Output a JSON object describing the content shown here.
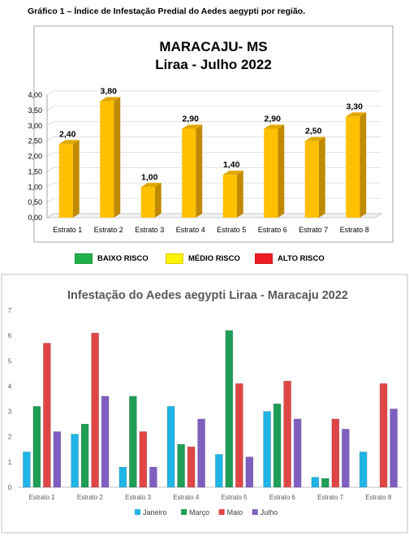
{
  "caption": "Gráfico 1 – Índice de Infestação Predial do Aedes aegypti por região.",
  "risk_legend": [
    {
      "label": "BAIXO RISCO",
      "color": "#21B14A"
    },
    {
      "label": "MÉDIO RISCO",
      "color": "#FFF200"
    },
    {
      "label": "ALTO RISCO",
      "color": "#ED1C24"
    }
  ],
  "chart_data": [
    {
      "type": "bar",
      "title": "MARACAJU- MS",
      "subtitle": "Liraa - Julho 2022",
      "categories": [
        "Estrato 1",
        "Estrato 2",
        "Estrato 3",
        "Estrato 4",
        "Estrato 5",
        "Estrato 6",
        "Estrato 7",
        "Estrato 8"
      ],
      "values": [
        2.4,
        3.8,
        1.0,
        2.9,
        1.4,
        2.9,
        2.5,
        3.3
      ],
      "value_labels": [
        "2,40",
        "3,80",
        "1,00",
        "2,90",
        "1,40",
        "2,90",
        "2,50",
        "3,30"
      ],
      "ylim": [
        0,
        4
      ],
      "yticks": [
        "0,00",
        "0,50",
        "1,00",
        "1,50",
        "2,00",
        "2,50",
        "3,00",
        "3,50",
        "4,00"
      ],
      "bar_color": "#FFC000",
      "style": "3d",
      "legend": "none"
    },
    {
      "type": "bar",
      "title": "Infestação do Aedes aegypti Liraa - Maracaju 2022",
      "categories": [
        "Estrato 1",
        "Estrato 2",
        "Estrato 3",
        "Estrato 4",
        "Estrato 5",
        "Estrato 6",
        "Estrato 7",
        "Estrato 8"
      ],
      "series": [
        {
          "name": "Janeiro",
          "color": "#1FB5E6",
          "values": [
            1.4,
            2.1,
            0.8,
            3.2,
            1.3,
            3.0,
            0.4,
            1.4
          ]
        },
        {
          "name": "Março",
          "color": "#1E9E56",
          "values": [
            3.2,
            2.5,
            3.6,
            1.7,
            6.2,
            3.3,
            0.35,
            0
          ]
        },
        {
          "name": "Maio",
          "color": "#E04545",
          "values": [
            5.7,
            6.1,
            2.2,
            1.6,
            4.1,
            4.2,
            2.7,
            4.1
          ]
        },
        {
          "name": "Julho",
          "color": "#7E5FC0",
          "values": [
            2.2,
            3.6,
            0.8,
            2.7,
            1.2,
            2.7,
            2.3,
            3.1
          ]
        }
      ],
      "ylim": [
        0,
        7
      ],
      "yticks": [
        "0",
        "1",
        "2",
        "3",
        "4",
        "5",
        "6",
        "7"
      ],
      "legend": "bottom"
    }
  ]
}
